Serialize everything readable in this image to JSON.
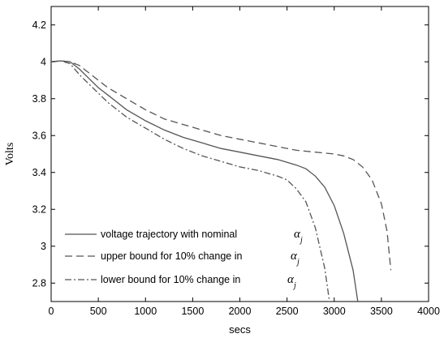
{
  "chart_data": {
    "type": "line",
    "title": "",
    "xlabel": "secs",
    "ylabel": "Volts",
    "xlim": [
      0,
      4000
    ],
    "ylim": [
      2.7,
      4.3
    ],
    "xticks": [
      0,
      500,
      1000,
      1500,
      2000,
      2500,
      3000,
      3500,
      4000
    ],
    "yticks": [
      2.8,
      3,
      3.2,
      3.4,
      3.6,
      3.8,
      4,
      4.2
    ],
    "ytick_labels": [
      "2.8",
      "3",
      "3.2",
      "3.4",
      "3.6",
      "3.8",
      "4",
      "4.2"
    ],
    "grid": false,
    "legend_position": "bottom-left",
    "series": [
      {
        "name": "voltage trajectory with nominal",
        "symbol": "α",
        "subscript": "j",
        "style": "solid",
        "color": "#555555",
        "points": [
          [
            0,
            4.0
          ],
          [
            100,
            4.005
          ],
          [
            200,
            4.0
          ],
          [
            300,
            3.96
          ],
          [
            400,
            3.91
          ],
          [
            500,
            3.86
          ],
          [
            600,
            3.82
          ],
          [
            700,
            3.78
          ],
          [
            800,
            3.74
          ],
          [
            900,
            3.71
          ],
          [
            1000,
            3.68
          ],
          [
            1200,
            3.63
          ],
          [
            1400,
            3.59
          ],
          [
            1600,
            3.56
          ],
          [
            1800,
            3.53
          ],
          [
            2000,
            3.51
          ],
          [
            2200,
            3.49
          ],
          [
            2400,
            3.47
          ],
          [
            2600,
            3.44
          ],
          [
            2700,
            3.42
          ],
          [
            2800,
            3.38
          ],
          [
            2900,
            3.32
          ],
          [
            3000,
            3.22
          ],
          [
            3100,
            3.07
          ],
          [
            3200,
            2.87
          ],
          [
            3250,
            2.7
          ]
        ]
      },
      {
        "name": "upper bound for 10% change in",
        "symbol": "α",
        "subscript": "j",
        "style": "dashed",
        "color": "#555555",
        "points": [
          [
            0,
            4.0
          ],
          [
            100,
            4.005
          ],
          [
            200,
            4.0
          ],
          [
            300,
            3.98
          ],
          [
            400,
            3.94
          ],
          [
            500,
            3.9
          ],
          [
            600,
            3.86
          ],
          [
            700,
            3.83
          ],
          [
            800,
            3.8
          ],
          [
            900,
            3.77
          ],
          [
            1000,
            3.74
          ],
          [
            1200,
            3.69
          ],
          [
            1400,
            3.66
          ],
          [
            1600,
            3.63
          ],
          [
            1800,
            3.6
          ],
          [
            2000,
            3.58
          ],
          [
            2200,
            3.56
          ],
          [
            2400,
            3.54
          ],
          [
            2600,
            3.52
          ],
          [
            2800,
            3.51
          ],
          [
            3000,
            3.5
          ],
          [
            3100,
            3.49
          ],
          [
            3200,
            3.47
          ],
          [
            3300,
            3.43
          ],
          [
            3400,
            3.36
          ],
          [
            3500,
            3.23
          ],
          [
            3560,
            3.08
          ],
          [
            3600,
            2.87
          ]
        ]
      },
      {
        "name": "lower bound for 10% change in",
        "symbol": "α",
        "subscript": "j",
        "style": "dashdot",
        "color": "#555555",
        "points": [
          [
            0,
            4.0
          ],
          [
            100,
            4.005
          ],
          [
            200,
            3.99
          ],
          [
            300,
            3.93
          ],
          [
            400,
            3.88
          ],
          [
            500,
            3.83
          ],
          [
            600,
            3.78
          ],
          [
            700,
            3.74
          ],
          [
            800,
            3.7
          ],
          [
            900,
            3.67
          ],
          [
            1000,
            3.64
          ],
          [
            1200,
            3.58
          ],
          [
            1400,
            3.53
          ],
          [
            1600,
            3.49
          ],
          [
            1800,
            3.46
          ],
          [
            2000,
            3.43
          ],
          [
            2200,
            3.41
          ],
          [
            2400,
            3.38
          ],
          [
            2500,
            3.36
          ],
          [
            2600,
            3.31
          ],
          [
            2700,
            3.24
          ],
          [
            2800,
            3.1
          ],
          [
            2900,
            2.88
          ],
          [
            2950,
            2.7
          ]
        ]
      }
    ]
  }
}
